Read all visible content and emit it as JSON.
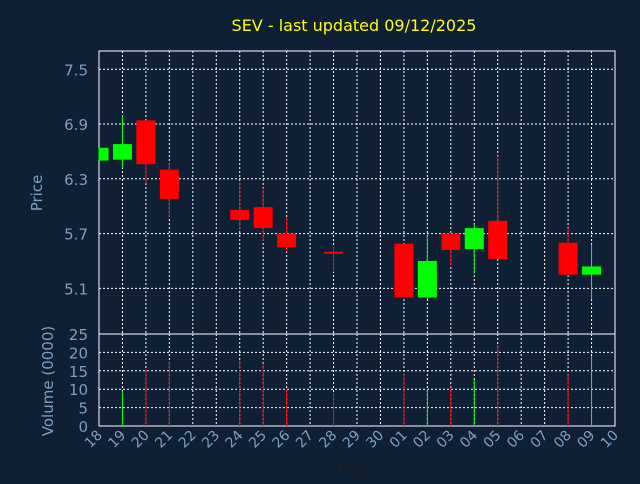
{
  "chart_data": {
    "type": "candlestick",
    "title": "SEV - last updated 09/12/2025",
    "xlabel": "Day",
    "price_panel": {
      "ylabel": "Price",
      "ylim": [
        4.6,
        7.7
      ],
      "yticks": [
        "5.1",
        "5.7",
        "6.3",
        "6.9",
        "7.5"
      ],
      "grid": true
    },
    "volume_panel": {
      "ylabel": "Volume (0000)",
      "ylim": [
        0,
        25
      ],
      "yticks": [
        "0",
        "5",
        "10",
        "15",
        "20",
        "25"
      ],
      "grid": true
    },
    "x_ticks": [
      "18",
      "19",
      "20",
      "21",
      "22",
      "23",
      "24",
      "25",
      "26",
      "27",
      "28",
      "29",
      "30",
      "01",
      "02",
      "03",
      "04",
      "05",
      "06",
      "07",
      "08",
      "09",
      "10"
    ],
    "colors": {
      "up": "#00ff00",
      "down": "#ff0000",
      "title": "#ffff00",
      "axis_text": "#7f9fc0",
      "grid": "#ffffff",
      "background": "#0f2034"
    },
    "candles": [
      {
        "day": "18",
        "open": 6.5,
        "high": 6.64,
        "low": 6.5,
        "close": 6.64,
        "volume": 0
      },
      {
        "day": "19",
        "open": 6.51,
        "high": 7.0,
        "low": 6.42,
        "close": 6.68,
        "volume": 9.5
      },
      {
        "day": "20",
        "open": 6.94,
        "high": 6.94,
        "low": 6.25,
        "close": 6.46,
        "volume": 15.5
      },
      {
        "day": "21",
        "open": 6.4,
        "high": 6.48,
        "low": 5.88,
        "close": 6.08,
        "volume": 17.5
      },
      {
        "day": "24",
        "open": 5.96,
        "high": 6.26,
        "low": 5.74,
        "close": 5.85,
        "volume": 18
      },
      {
        "day": "25",
        "open": 5.99,
        "high": 6.2,
        "low": 5.62,
        "close": 5.76,
        "volume": 17
      },
      {
        "day": "26",
        "open": 5.7,
        "high": 5.88,
        "low": 5.5,
        "close": 5.55,
        "volume": 10
      },
      {
        "day": "28",
        "open": 5.49,
        "high": 5.56,
        "low": 5.28,
        "close": 5.47,
        "volume": 9
      },
      {
        "day": "01",
        "open": 5.59,
        "high": 5.59,
        "low": 5.0,
        "close": 5.0,
        "volume": 14
      },
      {
        "day": "02",
        "open": 5.0,
        "high": 5.7,
        "low": 4.98,
        "close": 5.4,
        "volume": 10
      },
      {
        "day": "03",
        "open": 5.7,
        "high": 5.7,
        "low": 5.35,
        "close": 5.52,
        "volume": 10.5
      },
      {
        "day": "04",
        "open": 5.53,
        "high": 5.8,
        "low": 5.26,
        "close": 5.76,
        "volume": 12.5
      },
      {
        "day": "05",
        "open": 5.84,
        "high": 6.55,
        "low": 5.42,
        "close": 5.42,
        "volume": 22
      },
      {
        "day": "08",
        "open": 5.6,
        "high": 5.76,
        "low": 5.24,
        "close": 5.25,
        "volume": 14
      },
      {
        "day": "09",
        "open": 5.25,
        "high": 5.58,
        "low": 4.98,
        "close": 5.34,
        "volume": 19
      }
    ]
  }
}
